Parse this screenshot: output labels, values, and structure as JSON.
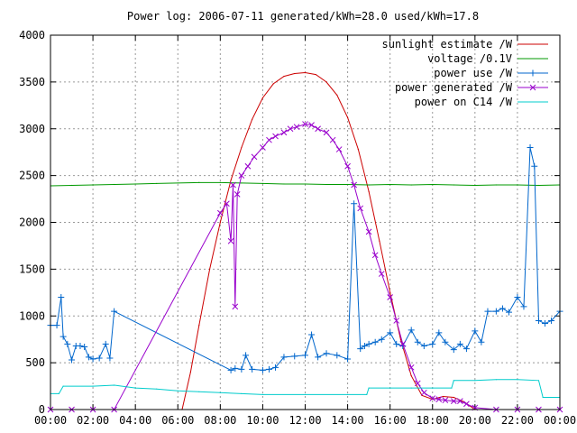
{
  "chart_data": {
    "type": "line",
    "title": "Power log: 2006-07-11 generated/kWh=28.0 used/kWh=17.8",
    "xlabel": "",
    "ylabel": "",
    "xlim": [
      0,
      24
    ],
    "ylim": [
      0,
      4000
    ],
    "x_ticks": [
      0,
      2,
      4,
      6,
      8,
      10,
      12,
      14,
      16,
      18,
      20,
      22,
      24
    ],
    "x_tick_labels": [
      "00:00",
      "02:00",
      "04:00",
      "06:00",
      "08:00",
      "10:00",
      "12:00",
      "14:00",
      "16:00",
      "18:00",
      "20:00",
      "22:00",
      "00:00"
    ],
    "y_ticks": [
      0,
      500,
      1000,
      1500,
      2000,
      2500,
      3000,
      3500,
      4000
    ],
    "y_tick_labels": [
      "0",
      "500",
      "1000",
      "1500",
      "2000",
      "2500",
      "3000",
      "3500",
      "4000"
    ],
    "legend_position": "top-right",
    "series": [
      {
        "name": "sunlight estimate /W",
        "color": "#cc0000",
        "marker": "none",
        "x": [
          6.2,
          6.6,
          7.0,
          7.5,
          8.0,
          8.5,
          9.0,
          9.5,
          10.0,
          10.5,
          11.0,
          11.5,
          12.0,
          12.5,
          13.0,
          13.5,
          14.0,
          14.5,
          15.0,
          15.5,
          16.0,
          16.5,
          17.0,
          17.5,
          18.0,
          18.5,
          19.0,
          19.5,
          20.0
        ],
        "y": [
          0,
          400,
          900,
          1500,
          2000,
          2450,
          2800,
          3100,
          3330,
          3480,
          3560,
          3590,
          3600,
          3580,
          3500,
          3360,
          3120,
          2780,
          2330,
          1800,
          1250,
          750,
          360,
          150,
          110,
          140,
          130,
          80,
          0
        ]
      },
      {
        "name": "voltage /0.1V",
        "color": "#009900",
        "marker": "none",
        "x": [
          0,
          1,
          2,
          3,
          4,
          5,
          6,
          7,
          8,
          9,
          10,
          11,
          12,
          13,
          14,
          15,
          16,
          17,
          18,
          19,
          20,
          21,
          22,
          23,
          24
        ],
        "y": [
          2390,
          2395,
          2400,
          2405,
          2410,
          2415,
          2420,
          2425,
          2425,
          2420,
          2415,
          2410,
          2410,
          2405,
          2405,
          2400,
          2405,
          2400,
          2405,
          2400,
          2395,
          2400,
          2400,
          2395,
          2400
        ]
      },
      {
        "name": "power use /W",
        "color": "#0066cc",
        "marker": "plus",
        "x": [
          0,
          0.3,
          0.5,
          0.6,
          0.8,
          1.0,
          1.2,
          1.4,
          1.6,
          1.8,
          2.0,
          2.3,
          2.6,
          2.8,
          3.0,
          8.5,
          8.7,
          9.0,
          9.2,
          9.5,
          10.0,
          10.3,
          10.6,
          11.0,
          11.5,
          12.0,
          12.3,
          12.6,
          13.0,
          13.5,
          14.0,
          14.3,
          14.6,
          14.8,
          15.0,
          15.3,
          15.6,
          16.0,
          16.3,
          16.6,
          17.0,
          17.3,
          17.6,
          18.0,
          18.3,
          18.6,
          19.0,
          19.3,
          19.6,
          20.0,
          20.3,
          20.6,
          21.0,
          21.3,
          21.6,
          22.0,
          22.3,
          22.6,
          22.8,
          23.0,
          23.3,
          23.6,
          24.0
        ],
        "y": [
          900,
          900,
          1200,
          780,
          700,
          530,
          680,
          680,
          670,
          560,
          540,
          550,
          700,
          550,
          1050,
          420,
          440,
          430,
          580,
          430,
          420,
          430,
          450,
          560,
          570,
          580,
          800,
          560,
          600,
          580,
          540,
          2200,
          650,
          680,
          700,
          720,
          750,
          820,
          700,
          680,
          850,
          720,
          680,
          700,
          820,
          720,
          640,
          700,
          650,
          840,
          720,
          1050,
          1050,
          1080,
          1040,
          1200,
          1100,
          2800,
          2600,
          950,
          920,
          950,
          1050
        ]
      },
      {
        "name": "power generated /W",
        "color": "#9900cc",
        "marker": "x",
        "x": [
          0,
          1,
          2,
          3,
          8.0,
          8.3,
          8.5,
          8.6,
          8.7,
          8.8,
          9.0,
          9.3,
          9.6,
          10.0,
          10.3,
          10.6,
          11.0,
          11.3,
          11.6,
          12.0,
          12.3,
          12.6,
          13.0,
          13.3,
          13.6,
          14.0,
          14.3,
          14.6,
          15.0,
          15.3,
          15.6,
          16.0,
          16.3,
          16.6,
          17.0,
          17.3,
          17.6,
          18.0,
          18.3,
          18.6,
          19.0,
          19.3,
          19.6,
          20.0,
          21.0,
          22.0,
          23.0,
          24.0
        ],
        "y": [
          0,
          0,
          0,
          0,
          2100,
          2200,
          1800,
          2400,
          1100,
          2300,
          2500,
          2600,
          2700,
          2800,
          2880,
          2920,
          2960,
          3000,
          3020,
          3050,
          3040,
          3000,
          2960,
          2880,
          2780,
          2600,
          2400,
          2150,
          1900,
          1650,
          1450,
          1200,
          950,
          700,
          450,
          280,
          180,
          120,
          110,
          100,
          90,
          90,
          60,
          20,
          0,
          0,
          0,
          0
        ]
      },
      {
        "name": "power on C14 /W",
        "color": "#00cccc",
        "marker": "none",
        "x": [
          0,
          0.4,
          0.6,
          2.0,
          3.0,
          4.0,
          5.0,
          6.0,
          7.0,
          8.0,
          9.0,
          10.0,
          12.0,
          14.0,
          14.9,
          15.0,
          16.0,
          17.0,
          18.0,
          18.9,
          19.0,
          20.0,
          21.0,
          22.0,
          23.0,
          23.2,
          24.0
        ],
        "y": [
          170,
          170,
          250,
          250,
          260,
          230,
          220,
          200,
          190,
          180,
          170,
          160,
          160,
          160,
          160,
          230,
          230,
          230,
          230,
          230,
          310,
          310,
          320,
          320,
          310,
          130,
          130
        ]
      }
    ]
  }
}
